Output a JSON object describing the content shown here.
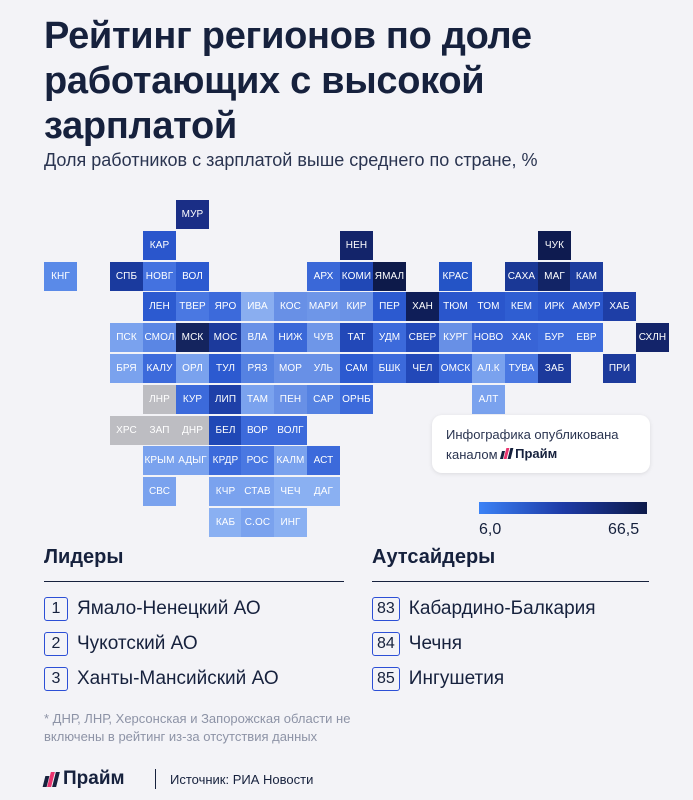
{
  "title": "Рейтинг регионов по доле работающих с высокой зарплатой",
  "subtitle": "Доля работников с зарплатой выше среднего по стране, %",
  "colors": {
    "background": "#f3f3f7",
    "text": "#16213d",
    "no_data": "#bdbdc2",
    "accent": "#2c4fd6",
    "scale_low": "#3b82f6",
    "scale_high": "#0d1a4a",
    "brand_pink": "#e8336e"
  },
  "map": {
    "regions": [
      {
        "label": "МУР",
        "row": 0,
        "col": 4,
        "color": "#1a2e86"
      },
      {
        "label": "КАР",
        "row": 1,
        "col": 3,
        "color": "#2a56cc"
      },
      {
        "label": "НЕН",
        "row": 1,
        "col": 9,
        "color": "#13246a"
      },
      {
        "label": "ЧУК",
        "row": 1,
        "col": 15,
        "color": "#0e1b50"
      },
      {
        "label": "КНГ",
        "row": 2,
        "col": 0,
        "color": "#5a8ae8"
      },
      {
        "label": "СПБ",
        "row": 2,
        "col": 2,
        "color": "#1a3a9e"
      },
      {
        "label": "НОВГ",
        "row": 2,
        "col": 3,
        "color": "#4472e0"
      },
      {
        "label": "ВОЛ",
        "row": 2,
        "col": 4,
        "color": "#2c5ad0"
      },
      {
        "label": "АРХ",
        "row": 2,
        "col": 8,
        "color": "#3a68d8"
      },
      {
        "label": "КОМИ",
        "row": 2,
        "col": 9,
        "color": "#2048b6"
      },
      {
        "label": "ЯМАЛ",
        "row": 2,
        "col": 10,
        "color": "#0d1a4a"
      },
      {
        "label": "КРАС",
        "row": 2,
        "col": 12,
        "color": "#2454c6"
      },
      {
        "label": "САХА",
        "row": 2,
        "col": 14,
        "color": "#1a3896"
      },
      {
        "label": "МАГ",
        "row": 2,
        "col": 15,
        "color": "#122466"
      },
      {
        "label": "КАМ",
        "row": 2,
        "col": 16,
        "color": "#1c3c9e"
      },
      {
        "label": "ЛЕН",
        "row": 3,
        "col": 3,
        "color": "#2c5ad0"
      },
      {
        "label": "ТВЕР",
        "row": 3,
        "col": 4,
        "color": "#4a78e2"
      },
      {
        "label": "ЯРО",
        "row": 3,
        "col": 5,
        "color": "#3c6adb"
      },
      {
        "label": "ИВА",
        "row": 3,
        "col": 6,
        "color": "#8aaef0"
      },
      {
        "label": "КОС",
        "row": 3,
        "col": 7,
        "color": "#6890e6"
      },
      {
        "label": "МАРИ",
        "row": 3,
        "col": 8,
        "color": "#6e96e8"
      },
      {
        "label": "КИР",
        "row": 3,
        "col": 9,
        "color": "#6a92e6"
      },
      {
        "label": "ПЕР",
        "row": 3,
        "col": 10,
        "color": "#2c5ad0"
      },
      {
        "label": "ХАН",
        "row": 3,
        "col": 11,
        "color": "#0f1e58"
      },
      {
        "label": "ТЮМ",
        "row": 3,
        "col": 12,
        "color": "#2a56cc"
      },
      {
        "label": "ТОМ",
        "row": 3,
        "col": 13,
        "color": "#2a56cc"
      },
      {
        "label": "КЕМ",
        "row": 3,
        "col": 14,
        "color": "#2f5ed2"
      },
      {
        "label": "ИРК",
        "row": 3,
        "col": 15,
        "color": "#2a56cc"
      },
      {
        "label": "АМУР",
        "row": 3,
        "col": 16,
        "color": "#2a56cc"
      },
      {
        "label": "ХАБ",
        "row": 3,
        "col": 17,
        "color": "#1e3ea6"
      },
      {
        "label": "ПСК",
        "row": 4,
        "col": 2,
        "color": "#7aa2ee"
      },
      {
        "label": "СМОЛ",
        "row": 4,
        "col": 3,
        "color": "#5a86e4"
      },
      {
        "label": "МСК",
        "row": 4,
        "col": 4,
        "color": "#14245e"
      },
      {
        "label": "МОС",
        "row": 4,
        "col": 5,
        "color": "#1c3a9c"
      },
      {
        "label": "ВЛА",
        "row": 4,
        "col": 6,
        "color": "#6890e6"
      },
      {
        "label": "НИЖ",
        "row": 4,
        "col": 7,
        "color": "#3a68d8"
      },
      {
        "label": "ЧУВ",
        "row": 4,
        "col": 8,
        "color": "#6e96e8"
      },
      {
        "label": "ТАТ",
        "row": 4,
        "col": 9,
        "color": "#2248b8"
      },
      {
        "label": "УДМ",
        "row": 4,
        "col": 10,
        "color": "#3c6adb"
      },
      {
        "label": "СВЕР",
        "row": 4,
        "col": 11,
        "color": "#2248b8"
      },
      {
        "label": "КУРГ",
        "row": 4,
        "col": 12,
        "color": "#6890e6"
      },
      {
        "label": "НОВО",
        "row": 4,
        "col": 13,
        "color": "#3864d6"
      },
      {
        "label": "ХАК",
        "row": 4,
        "col": 14,
        "color": "#3864d6"
      },
      {
        "label": "БУР",
        "row": 4,
        "col": 15,
        "color": "#3c6adb"
      },
      {
        "label": "ЕВР",
        "row": 4,
        "col": 16,
        "color": "#3c6adb"
      },
      {
        "label": "СХЛН",
        "row": 4,
        "col": 18,
        "color": "#13246a"
      },
      {
        "label": "БРЯ",
        "row": 5,
        "col": 2,
        "color": "#7aa2ee"
      },
      {
        "label": "КАЛУ",
        "row": 5,
        "col": 3,
        "color": "#3c6adb"
      },
      {
        "label": "ОРЛ",
        "row": 5,
        "col": 4,
        "color": "#7aa2ee"
      },
      {
        "label": "ТУЛ",
        "row": 5,
        "col": 5,
        "color": "#2c5ad0"
      },
      {
        "label": "РЯЗ",
        "row": 5,
        "col": 6,
        "color": "#5582e2"
      },
      {
        "label": "МОР",
        "row": 5,
        "col": 7,
        "color": "#6890e6"
      },
      {
        "label": "УЛЬ",
        "row": 5,
        "col": 8,
        "color": "#6890e6"
      },
      {
        "label": "САМ",
        "row": 5,
        "col": 9,
        "color": "#2c5ad0"
      },
      {
        "label": "БШК",
        "row": 5,
        "col": 10,
        "color": "#3c6adb"
      },
      {
        "label": "ЧЕЛ",
        "row": 5,
        "col": 11,
        "color": "#2248b8"
      },
      {
        "label": "ОМСК",
        "row": 5,
        "col": 12,
        "color": "#3c6adb"
      },
      {
        "label": "АЛ.К",
        "row": 5,
        "col": 13,
        "color": "#7aa2ee"
      },
      {
        "label": "ТУВА",
        "row": 5,
        "col": 14,
        "color": "#4a78e2"
      },
      {
        "label": "ЗАБ",
        "row": 5,
        "col": 15,
        "color": "#1c3a9c"
      },
      {
        "label": "ПРИ",
        "row": 5,
        "col": 17,
        "color": "#1c3a9c"
      },
      {
        "label": "ЛНР",
        "row": 6,
        "col": 3,
        "color": "#bdbdc2"
      },
      {
        "label": "КУР",
        "row": 6,
        "col": 4,
        "color": "#3c6adb"
      },
      {
        "label": "ЛИП",
        "row": 6,
        "col": 5,
        "color": "#1e40a8"
      },
      {
        "label": "ТАМ",
        "row": 6,
        "col": 6,
        "color": "#7aa2ee"
      },
      {
        "label": "ПЕН",
        "row": 6,
        "col": 7,
        "color": "#6890e6"
      },
      {
        "label": "САР",
        "row": 6,
        "col": 8,
        "color": "#5582e2"
      },
      {
        "label": "ОРНБ",
        "row": 6,
        "col": 9,
        "color": "#3c6adb"
      },
      {
        "label": "АЛТ",
        "row": 6,
        "col": 13,
        "color": "#7aa2ee"
      },
      {
        "label": "ХРС",
        "row": 7,
        "col": 2,
        "color": "#bdbdc2"
      },
      {
        "label": "ЗАП",
        "row": 7,
        "col": 3,
        "color": "#bdbdc2"
      },
      {
        "label": "ДНР",
        "row": 7,
        "col": 4,
        "color": "#bdbdc2"
      },
      {
        "label": "БЕЛ",
        "row": 7,
        "col": 5,
        "color": "#2048b6"
      },
      {
        "label": "ВОР",
        "row": 7,
        "col": 6,
        "color": "#3c6adb"
      },
      {
        "label": "ВОЛГ",
        "row": 7,
        "col": 7,
        "color": "#3c6adb"
      },
      {
        "label": "КРЫМ",
        "row": 8,
        "col": 3,
        "color": "#7aa2ee"
      },
      {
        "label": "АДЫГ",
        "row": 8,
        "col": 4,
        "color": "#7aa2ee"
      },
      {
        "label": "КРДР",
        "row": 8,
        "col": 5,
        "color": "#3c6adb"
      },
      {
        "label": "РОС",
        "row": 8,
        "col": 6,
        "color": "#4a78e2"
      },
      {
        "label": "КАЛМ",
        "row": 8,
        "col": 7,
        "color": "#7aa2ee"
      },
      {
        "label": "АСТ",
        "row": 8,
        "col": 8,
        "color": "#3c6adb"
      },
      {
        "label": "СВС",
        "row": 9,
        "col": 3,
        "color": "#7aa2ee"
      },
      {
        "label": "КЧР",
        "row": 9,
        "col": 5,
        "color": "#7aa2ee"
      },
      {
        "label": "СТАВ",
        "row": 9,
        "col": 6,
        "color": "#7aa2ee"
      },
      {
        "label": "ЧЕЧ",
        "row": 9,
        "col": 7,
        "color": "#8ab0f2"
      },
      {
        "label": "ДАГ",
        "row": 9,
        "col": 8,
        "color": "#8ab0f2"
      },
      {
        "label": "КАБ",
        "row": 10,
        "col": 5,
        "color": "#8ab0f2"
      },
      {
        "label": "С.ОС",
        "row": 10,
        "col": 6,
        "color": "#7aa2ee"
      },
      {
        "label": "ИНГ",
        "row": 10,
        "col": 7,
        "color": "#8ab0f2"
      }
    ]
  },
  "info_box": {
    "text_line1": "Инфографика опубликована",
    "text_line2": "каналом",
    "brand": "Прайм"
  },
  "legend": {
    "min": "6,0",
    "max": "66,5"
  },
  "leaders": {
    "heading": "Лидеры",
    "items": [
      {
        "rank": "1",
        "name": "Ямало-Ненецкий АО"
      },
      {
        "rank": "2",
        "name": "Чукотский АО"
      },
      {
        "rank": "3",
        "name": "Ханты-Мансийский АО"
      }
    ]
  },
  "outsiders": {
    "heading": "Аутсайдеры",
    "items": [
      {
        "rank": "83",
        "name": "Кабардино-Балкария"
      },
      {
        "rank": "84",
        "name": "Чечня"
      },
      {
        "rank": "85",
        "name": "Ингушетия"
      }
    ]
  },
  "footnote": "* ДНР, ЛНР, Херсонская и Запорожская области не включены в рейтинг из-за отсутствия данных",
  "footer": {
    "brand": "Прайм",
    "source": "Источник: РИА Новости"
  }
}
